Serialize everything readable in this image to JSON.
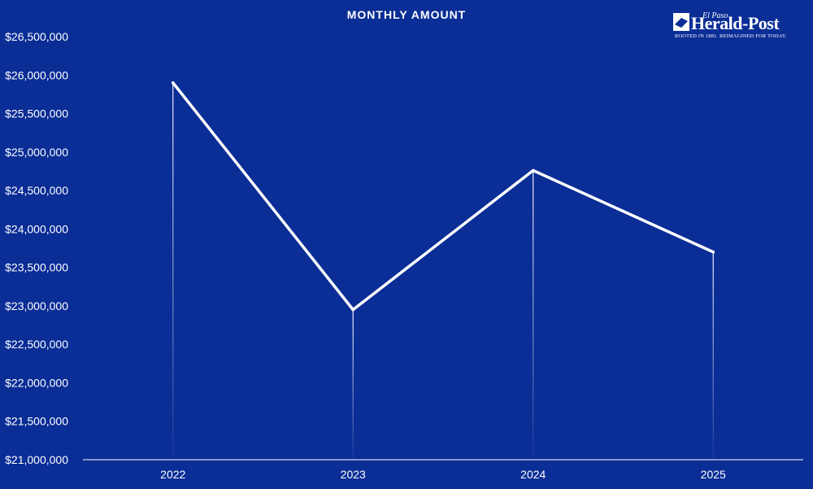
{
  "chart_data": {
    "type": "line",
    "title": "MONTHLY AMOUNT",
    "categories": [
      "2022",
      "2023",
      "2024",
      "2025"
    ],
    "series": [
      {
        "values": [
          25900000,
          22950000,
          24760000,
          23700000
        ]
      }
    ],
    "ylim": [
      21000000,
      26500000
    ],
    "yticks": [
      "$21,000,000",
      "$21,500,000",
      "$22,000,000",
      "$22,500,000",
      "$23,000,000",
      "$23,500,000",
      "$24,000,000",
      "$24,500,000",
      "$25,000,000",
      "$25,500,000",
      "$26,000,000",
      "$26,500,000"
    ],
    "ytick_values": [
      21000000,
      21500000,
      22000000,
      22500000,
      23000000,
      23500000,
      24000000,
      24500000,
      25000000,
      25500000,
      26000000,
      26500000
    ],
    "grid": false,
    "drop_lines": true
  },
  "logo": {
    "small": "El Paso",
    "name": "Herald-Post",
    "tagline": "ROOTED IN 1881. REIMAGINED FOR TODAY."
  },
  "colors": {
    "background": "#0a2d96",
    "line": "#ffffff",
    "text": "#ffffff"
  }
}
